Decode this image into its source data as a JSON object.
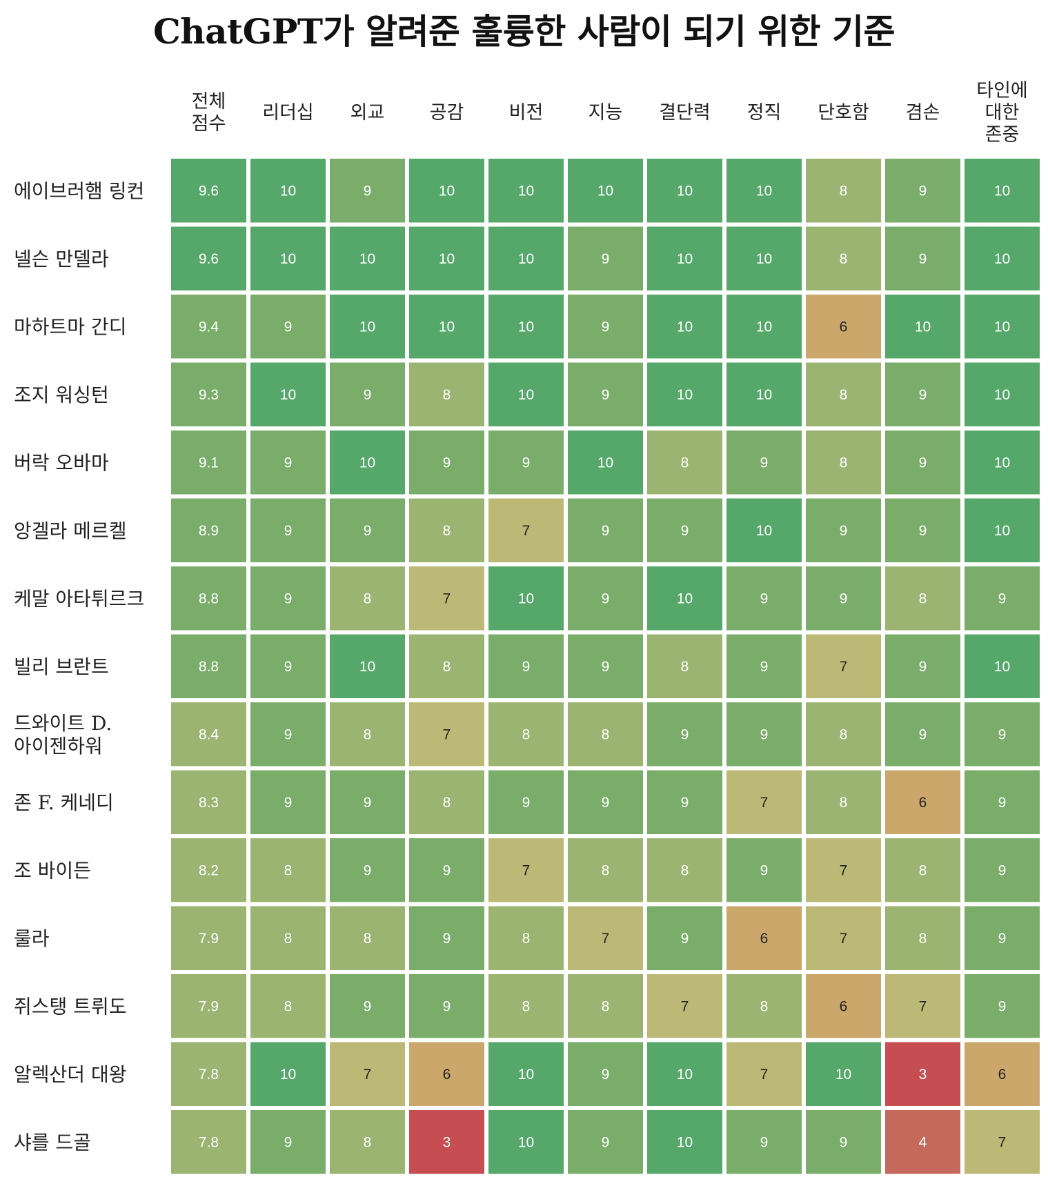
{
  "chart_data": {
    "type": "heatmap",
    "title": "ChatGPT가 알려준 훌륭한 사람이 되기 위한 기준",
    "columns": [
      "전체\n점수",
      "리더십",
      "외교",
      "공감",
      "비전",
      "지능",
      "결단력",
      "정직",
      "단호함",
      "겸손",
      "타인에\n대한\n존중"
    ],
    "rows": [
      "에이브러햄 링컨",
      "넬슨 만델라",
      "마하트마 간디",
      "조지 워싱턴",
      "버락 오바마",
      "앙겔라 메르켈",
      "케말 아타튀르크",
      "빌리 브란트",
      "드와이트 D.\n아이젠하워",
      "존 F. 케네디",
      "조 바이든",
      "룰라",
      "쥐스탱 트뤼도",
      "알렉산더 대왕",
      "샤를 드골"
    ],
    "values": [
      [
        "9.6",
        "10",
        "9",
        "10",
        "10",
        "10",
        "10",
        "10",
        "8",
        "9",
        "10"
      ],
      [
        "9.6",
        "10",
        "10",
        "10",
        "10",
        "9",
        "10",
        "10",
        "8",
        "9",
        "10"
      ],
      [
        "9.4",
        "9",
        "10",
        "10",
        "10",
        "9",
        "10",
        "10",
        "6",
        "10",
        "10"
      ],
      [
        "9.3",
        "10",
        "9",
        "8",
        "10",
        "9",
        "10",
        "10",
        "8",
        "9",
        "10"
      ],
      [
        "9.1",
        "9",
        "10",
        "9",
        "9",
        "10",
        "8",
        "9",
        "8",
        "9",
        "10"
      ],
      [
        "8.9",
        "9",
        "9",
        "8",
        "7",
        "9",
        "9",
        "10",
        "9",
        "9",
        "10"
      ],
      [
        "8.8",
        "9",
        "8",
        "7",
        "10",
        "9",
        "10",
        "9",
        "9",
        "8",
        "9"
      ],
      [
        "8.8",
        "9",
        "10",
        "8",
        "9",
        "9",
        "8",
        "9",
        "7",
        "9",
        "10"
      ],
      [
        "8.4",
        "9",
        "8",
        "7",
        "8",
        "8",
        "9",
        "9",
        "8",
        "9",
        "9"
      ],
      [
        "8.3",
        "9",
        "9",
        "8",
        "9",
        "9",
        "9",
        "7",
        "8",
        "6",
        "9"
      ],
      [
        "8.2",
        "8",
        "9",
        "9",
        "7",
        "8",
        "8",
        "9",
        "7",
        "8",
        "9"
      ],
      [
        "7.9",
        "8",
        "8",
        "9",
        "8",
        "7",
        "9",
        "6",
        "7",
        "8",
        "9"
      ],
      [
        "7.9",
        "8",
        "9",
        "9",
        "8",
        "8",
        "7",
        "8",
        "6",
        "7",
        "9"
      ],
      [
        "7.8",
        "10",
        "7",
        "6",
        "10",
        "9",
        "10",
        "7",
        "10",
        "3",
        "6"
      ],
      [
        "7.8",
        "9",
        "8",
        "3",
        "10",
        "9",
        "10",
        "9",
        "9",
        "4",
        "7"
      ]
    ],
    "color_scale": {
      "10": "#55a86a",
      "9": "#7aad6a",
      "8": "#9cb472",
      "7": "#bcb977",
      "6": "#cba76c",
      "4": "#c6695d",
      "3": "#c64e53"
    },
    "colors": {
      "light_text": "#ffffff",
      "dark_text": "#222222"
    }
  }
}
